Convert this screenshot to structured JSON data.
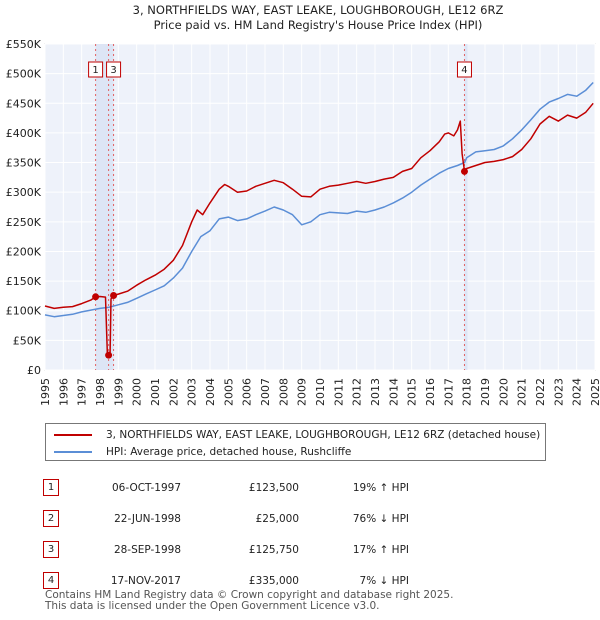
{
  "chart_data": {
    "type": "line",
    "title": "3, NORTHFIELDS WAY, EAST LEAKE, LOUGHBOROUGH, LE12 6RZ",
    "subtitle": "Price paid vs. HM Land Registry's House Price Index (HPI)",
    "xlim": [
      1995,
      2025
    ],
    "ylim": [
      0,
      550000
    ],
    "x_ticks": [
      "1995",
      "1996",
      "1997",
      "1998",
      "1999",
      "2000",
      "2001",
      "2002",
      "2003",
      "2004",
      "2005",
      "2006",
      "2007",
      "2008",
      "2009",
      "2010",
      "2011",
      "2012",
      "2013",
      "2014",
      "2015",
      "2016",
      "2017",
      "2018",
      "2019",
      "2020",
      "2021",
      "2022",
      "2023",
      "2024",
      "2025"
    ],
    "y_ticks": [
      {
        "value": 0,
        "label": "£0"
      },
      {
        "value": 50000,
        "label": "£50K"
      },
      {
        "value": 100000,
        "label": "£100K"
      },
      {
        "value": 150000,
        "label": "£150K"
      },
      {
        "value": 200000,
        "label": "£200K"
      },
      {
        "value": 250000,
        "label": "£250K"
      },
      {
        "value": 300000,
        "label": "£300K"
      },
      {
        "value": 350000,
        "label": "£350K"
      },
      {
        "value": 400000,
        "label": "£400K"
      },
      {
        "value": 450000,
        "label": "£450K"
      },
      {
        "value": 500000,
        "label": "£500K"
      },
      {
        "value": 550000,
        "label": "£550K"
      }
    ],
    "series": [
      {
        "name": "3, NORTHFIELDS WAY, EAST LEAKE, LOUGHBOROUGH, LE12 6RZ (detached house)",
        "color": "#c00000",
        "points": [
          [
            1995.0,
            108000
          ],
          [
            1995.5,
            104000
          ],
          [
            1996.0,
            106000
          ],
          [
            1996.5,
            107000
          ],
          [
            1997.0,
            112000
          ],
          [
            1997.5,
            118000
          ],
          [
            1997.76,
            123500
          ],
          [
            1998.0,
            124000
          ],
          [
            1998.3,
            123000
          ],
          [
            1998.4,
            30000
          ],
          [
            1998.47,
            25000
          ],
          [
            1998.55,
            30000
          ],
          [
            1998.6,
            120000
          ],
          [
            1998.74,
            125750
          ],
          [
            1999.0,
            128000
          ],
          [
            1999.5,
            133000
          ],
          [
            2000.0,
            143000
          ],
          [
            2000.5,
            152000
          ],
          [
            2001.0,
            160000
          ],
          [
            2001.5,
            170000
          ],
          [
            2002.0,
            185000
          ],
          [
            2002.5,
            210000
          ],
          [
            2003.0,
            250000
          ],
          [
            2003.3,
            270000
          ],
          [
            2003.6,
            262000
          ],
          [
            2004.0,
            282000
          ],
          [
            2004.5,
            305000
          ],
          [
            2004.8,
            313000
          ],
          [
            2005.0,
            310000
          ],
          [
            2005.5,
            300000
          ],
          [
            2006.0,
            302000
          ],
          [
            2006.5,
            310000
          ],
          [
            2007.0,
            315000
          ],
          [
            2007.5,
            320000
          ],
          [
            2008.0,
            316000
          ],
          [
            2008.5,
            305000
          ],
          [
            2009.0,
            293000
          ],
          [
            2009.5,
            292000
          ],
          [
            2010.0,
            305000
          ],
          [
            2010.5,
            310000
          ],
          [
            2011.0,
            312000
          ],
          [
            2011.5,
            315000
          ],
          [
            2012.0,
            318000
          ],
          [
            2012.5,
            315000
          ],
          [
            2013.0,
            318000
          ],
          [
            2013.5,
            322000
          ],
          [
            2014.0,
            325000
          ],
          [
            2014.5,
            335000
          ],
          [
            2015.0,
            340000
          ],
          [
            2015.5,
            358000
          ],
          [
            2016.0,
            370000
          ],
          [
            2016.5,
            385000
          ],
          [
            2016.8,
            398000
          ],
          [
            2017.0,
            400000
          ],
          [
            2017.3,
            395000
          ],
          [
            2017.5,
            405000
          ],
          [
            2017.65,
            420000
          ],
          [
            2017.75,
            365000
          ],
          [
            2017.88,
            335000
          ],
          [
            2018.0,
            340000
          ],
          [
            2018.5,
            345000
          ],
          [
            2019.0,
            350000
          ],
          [
            2019.5,
            352000
          ],
          [
            2020.0,
            355000
          ],
          [
            2020.5,
            360000
          ],
          [
            2021.0,
            372000
          ],
          [
            2021.5,
            390000
          ],
          [
            2022.0,
            415000
          ],
          [
            2022.5,
            428000
          ],
          [
            2023.0,
            420000
          ],
          [
            2023.5,
            430000
          ],
          [
            2024.0,
            425000
          ],
          [
            2024.5,
            435000
          ],
          [
            2024.9,
            450000
          ]
        ]
      },
      {
        "name": "HPI: Average price, detached house, Rushcliffe",
        "color": "#5b8ed6",
        "points": [
          [
            1995.0,
            93000
          ],
          [
            1995.5,
            90000
          ],
          [
            1996.0,
            92000
          ],
          [
            1996.5,
            94000
          ],
          [
            1997.0,
            98000
          ],
          [
            1997.5,
            101000
          ],
          [
            1998.0,
            104000
          ],
          [
            1998.5,
            106000
          ],
          [
            1999.0,
            110000
          ],
          [
            1999.5,
            114000
          ],
          [
            2000.0,
            121000
          ],
          [
            2000.5,
            128000
          ],
          [
            2001.0,
            135000
          ],
          [
            2001.5,
            142000
          ],
          [
            2002.0,
            155000
          ],
          [
            2002.5,
            172000
          ],
          [
            2003.0,
            200000
          ],
          [
            2003.5,
            225000
          ],
          [
            2004.0,
            235000
          ],
          [
            2004.5,
            255000
          ],
          [
            2005.0,
            258000
          ],
          [
            2005.5,
            252000
          ],
          [
            2006.0,
            255000
          ],
          [
            2006.5,
            262000
          ],
          [
            2007.0,
            268000
          ],
          [
            2007.5,
            275000
          ],
          [
            2008.0,
            270000
          ],
          [
            2008.5,
            262000
          ],
          [
            2009.0,
            245000
          ],
          [
            2009.5,
            250000
          ],
          [
            2010.0,
            262000
          ],
          [
            2010.5,
            266000
          ],
          [
            2011.0,
            265000
          ],
          [
            2011.5,
            264000
          ],
          [
            2012.0,
            268000
          ],
          [
            2012.5,
            266000
          ],
          [
            2013.0,
            270000
          ],
          [
            2013.5,
            275000
          ],
          [
            2014.0,
            282000
          ],
          [
            2014.5,
            290000
          ],
          [
            2015.0,
            300000
          ],
          [
            2015.5,
            312000
          ],
          [
            2016.0,
            322000
          ],
          [
            2016.5,
            332000
          ],
          [
            2017.0,
            340000
          ],
          [
            2017.5,
            345000
          ],
          [
            2017.88,
            350000
          ],
          [
            2018.0,
            358000
          ],
          [
            2018.5,
            368000
          ],
          [
            2019.0,
            370000
          ],
          [
            2019.5,
            372000
          ],
          [
            2020.0,
            378000
          ],
          [
            2020.5,
            390000
          ],
          [
            2021.0,
            405000
          ],
          [
            2021.5,
            422000
          ],
          [
            2022.0,
            440000
          ],
          [
            2022.5,
            452000
          ],
          [
            2023.0,
            458000
          ],
          [
            2023.5,
            465000
          ],
          [
            2024.0,
            462000
          ],
          [
            2024.5,
            472000
          ],
          [
            2024.9,
            485000
          ]
        ]
      }
    ],
    "sales": [
      {
        "num": "1",
        "x": 1997.76,
        "price": 123500
      },
      {
        "num": "2",
        "x": 1998.47,
        "price": 25000
      },
      {
        "num": "3",
        "x": 1998.74,
        "price": 125750
      },
      {
        "num": "4",
        "x": 2017.88,
        "price": 335000
      }
    ],
    "markers": [
      {
        "num": "1",
        "x": 1997.76
      },
      {
        "num": "3",
        "x": 1998.74
      },
      {
        "num": "4",
        "x": 2017.88
      }
    ]
  },
  "legend": {
    "property_label": "3, NORTHFIELDS WAY, EAST LEAKE, LOUGHBOROUGH, LE12 6RZ (detached house)",
    "hpi_label": "HPI: Average price, detached house, Rushcliffe",
    "property_color": "#c00000",
    "hpi_color": "#5b8ed6"
  },
  "transactions": [
    {
      "num": "1",
      "date": "06-OCT-1997",
      "price": "£123,500",
      "hpi": "19% ↑ HPI"
    },
    {
      "num": "2",
      "date": "22-JUN-1998",
      "price": "£25,000",
      "hpi": "76% ↓ HPI"
    },
    {
      "num": "3",
      "date": "28-SEP-1998",
      "price": "£125,750",
      "hpi": "17% ↑ HPI"
    },
    {
      "num": "4",
      "date": "17-NOV-2017",
      "price": "£335,000",
      "hpi": "7% ↓ HPI"
    }
  ],
  "footer": {
    "line1": "Contains HM Land Registry data © Crown copyright and database right 2025.",
    "line2": "This data is licensed under the Open Government Licence v3.0."
  }
}
